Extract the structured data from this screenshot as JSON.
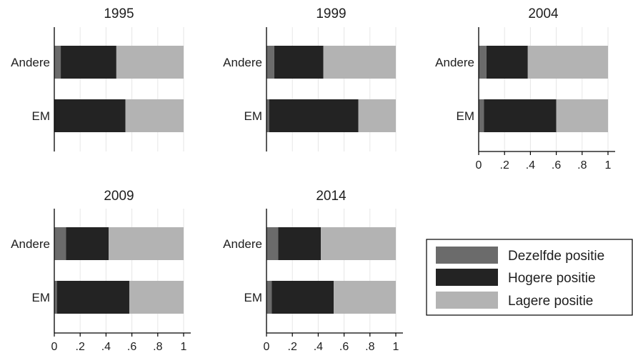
{
  "colors": {
    "dezelfde": "#6b6b6b",
    "hogere": "#232323",
    "lagere": "#b3b3b3",
    "axis": "#000000",
    "grid": "#e6e6e6"
  },
  "legend": {
    "items": [
      {
        "label": "Dezelfde positie",
        "color": "#6b6b6b"
      },
      {
        "label": "Hogere positie",
        "color": "#232323"
      },
      {
        "label": "Lagere positie",
        "color": "#b3b3b3"
      }
    ]
  },
  "chart_data": [
    {
      "type": "bar",
      "orientation": "horizontal",
      "stacked": true,
      "title": "1995",
      "categories": [
        "Andere",
        "EM"
      ],
      "series": [
        {
          "name": "Dezelfde positie",
          "values": [
            0.05,
            0.0
          ]
        },
        {
          "name": "Hogere positie",
          "values": [
            0.43,
            0.55
          ]
        },
        {
          "name": "Lagere positie",
          "values": [
            0.52,
            0.45
          ]
        }
      ],
      "xlim": [
        0,
        1
      ],
      "xticks": [],
      "grid": true,
      "legend": "bottom-right"
    },
    {
      "type": "bar",
      "orientation": "horizontal",
      "stacked": true,
      "title": "1999",
      "categories": [
        "Andere",
        "EM"
      ],
      "series": [
        {
          "name": "Dezelfde positie",
          "values": [
            0.06,
            0.02
          ]
        },
        {
          "name": "Hogere positie",
          "values": [
            0.38,
            0.69
          ]
        },
        {
          "name": "Lagere positie",
          "values": [
            0.56,
            0.29
          ]
        }
      ],
      "xlim": [
        0,
        1
      ],
      "xticks": [],
      "grid": true
    },
    {
      "type": "bar",
      "orientation": "horizontal",
      "stacked": true,
      "title": "2004",
      "categories": [
        "Andere",
        "EM"
      ],
      "series": [
        {
          "name": "Dezelfde positie",
          "values": [
            0.06,
            0.04
          ]
        },
        {
          "name": "Hogere positie",
          "values": [
            0.32,
            0.56
          ]
        },
        {
          "name": "Lagere positie",
          "values": [
            0.62,
            0.4
          ]
        }
      ],
      "xlim": [
        0,
        1
      ],
      "xticks": [
        "0",
        ".2",
        ".4",
        ".6",
        ".8",
        "1"
      ],
      "grid": true
    },
    {
      "type": "bar",
      "orientation": "horizontal",
      "stacked": true,
      "title": "2009",
      "categories": [
        "Andere",
        "EM"
      ],
      "series": [
        {
          "name": "Dezelfde positie",
          "values": [
            0.09,
            0.02
          ]
        },
        {
          "name": "Hogere positie",
          "values": [
            0.33,
            0.56
          ]
        },
        {
          "name": "Lagere positie",
          "values": [
            0.58,
            0.42
          ]
        }
      ],
      "xlim": [
        0,
        1
      ],
      "xticks": [
        "0",
        ".2",
        ".4",
        ".6",
        ".8",
        "1"
      ],
      "grid": true
    },
    {
      "type": "bar",
      "orientation": "horizontal",
      "stacked": true,
      "title": "2014",
      "categories": [
        "Andere",
        "EM"
      ],
      "series": [
        {
          "name": "Dezelfde positie",
          "values": [
            0.09,
            0.04
          ]
        },
        {
          "name": "Hogere positie",
          "values": [
            0.33,
            0.48
          ]
        },
        {
          "name": "Lagere positie",
          "values": [
            0.58,
            0.48
          ]
        }
      ],
      "xlim": [
        0,
        1
      ],
      "xticks": [
        "0",
        ".2",
        ".4",
        ".6",
        ".8",
        "1"
      ],
      "grid": true
    }
  ]
}
